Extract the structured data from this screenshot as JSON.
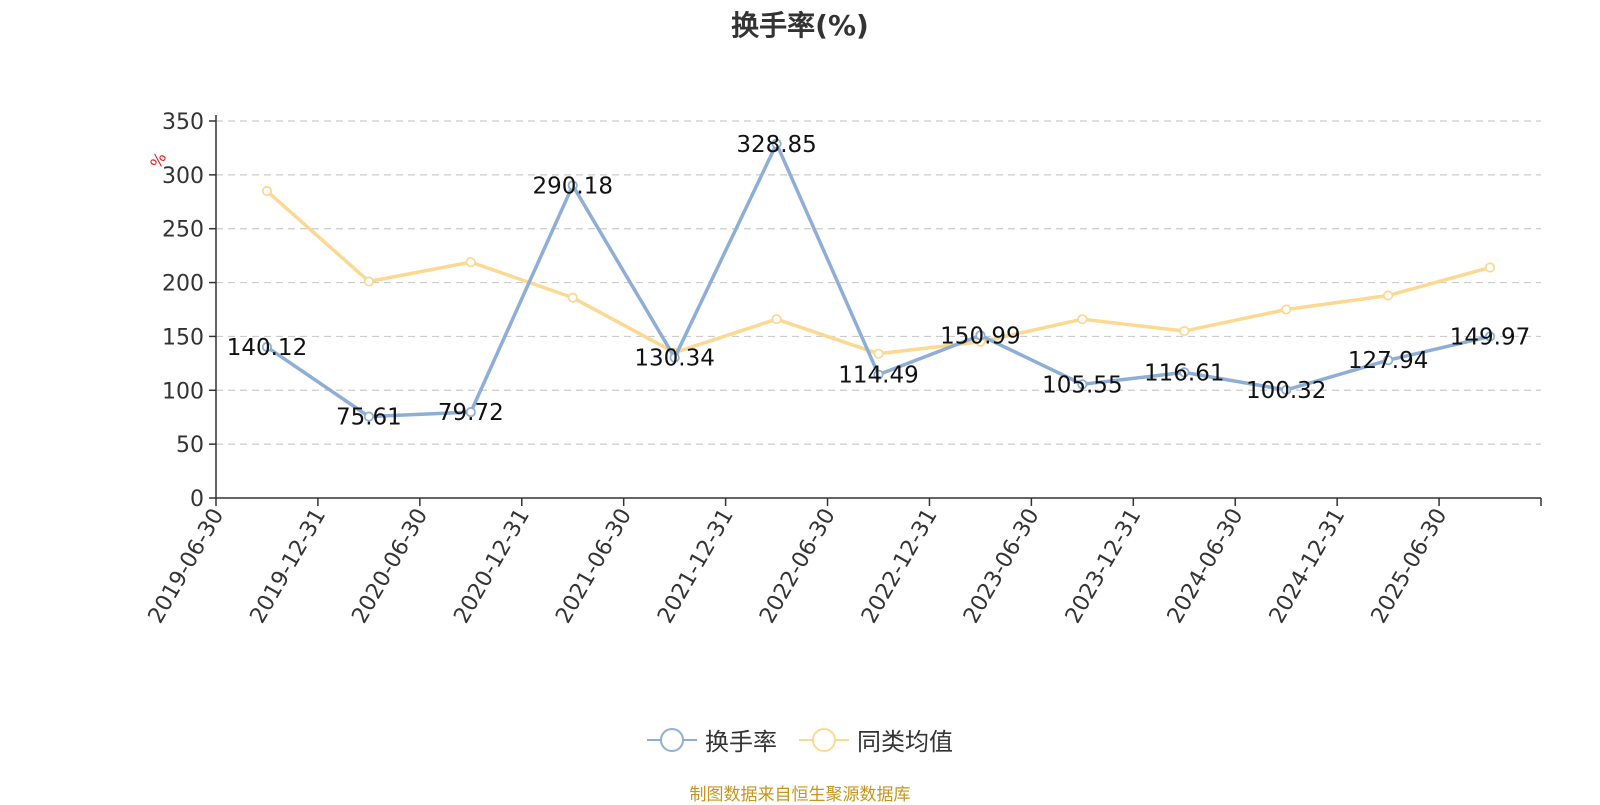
{
  "chart_data": {
    "type": "line",
    "title": "换手率(%)",
    "ylabel": "%",
    "ylim": [
      0,
      350
    ],
    "yticks": [
      0,
      50,
      100,
      150,
      200,
      250,
      300,
      350
    ],
    "grid": true,
    "legend_position": "bottom",
    "categories": [
      "2019-06-30",
      "2019-12-31",
      "2020-06-30",
      "2020-12-31",
      "2021-06-30",
      "2021-12-31",
      "2022-06-30",
      "2022-12-31",
      "2023-06-30",
      "2023-12-31",
      "2024-06-30",
      "2024-12-31",
      "2025-06-30"
    ],
    "series": [
      {
        "name": "换手率",
        "color": "#8eaed8",
        "values": [
          140.12,
          75.61,
          79.72,
          290.18,
          130.34,
          328.85,
          114.49,
          150.99,
          105.55,
          116.61,
          100.32,
          127.94,
          149.97
        ],
        "labels": [
          "140.12",
          "75.61",
          "79.72",
          "290.18",
          "130.34",
          "328.85",
          "114.49",
          "150.99",
          "105.55",
          "116.61",
          "100.32",
          "127.94",
          "149.97"
        ]
      },
      {
        "name": "同类均值",
        "color": "#fcd993",
        "values": [
          285,
          201,
          219,
          186,
          135,
          166,
          134,
          145,
          166,
          155,
          175,
          188,
          214
        ]
      }
    ]
  },
  "source_note": "制图数据来自恒生聚源数据库",
  "colors": {
    "axis": "#333333",
    "grid": "#cccccc",
    "ylabel": "#e02020",
    "source": "#c8941e"
  }
}
